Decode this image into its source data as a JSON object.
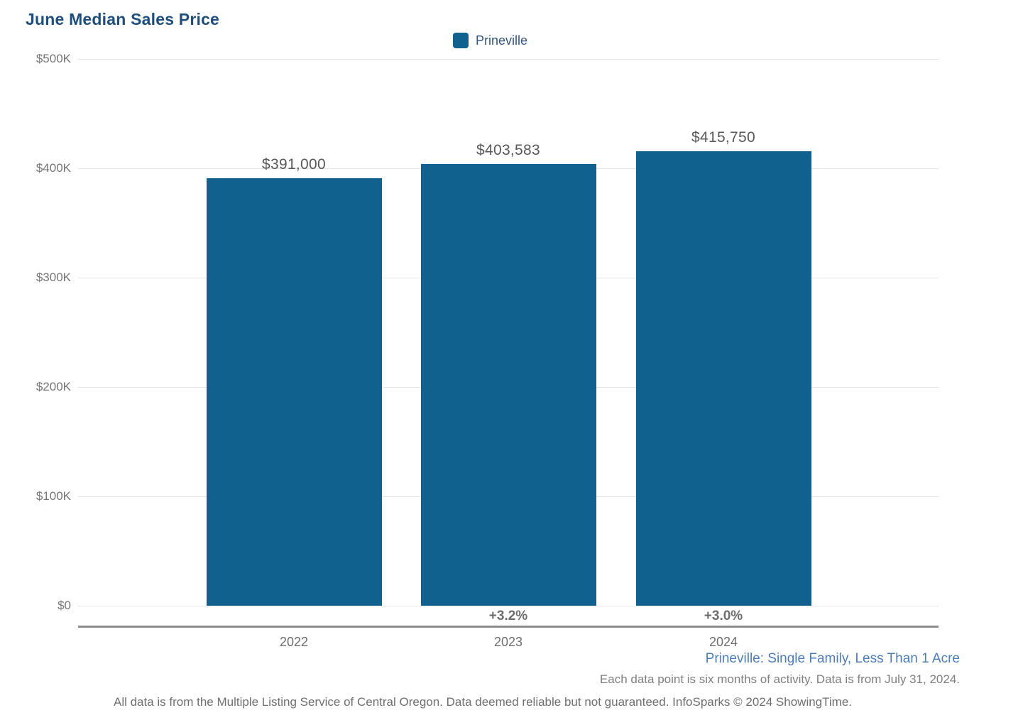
{
  "chart_data": {
    "type": "bar",
    "title": "June Median Sales Price",
    "legend_position": "top-center",
    "legend": [
      {
        "label": "Prineville",
        "color": "#11618f"
      }
    ],
    "categories": [
      "2022",
      "2023",
      "2024"
    ],
    "series": [
      {
        "name": "Prineville",
        "values": [
          391000,
          403583,
          415750
        ]
      }
    ],
    "value_labels": [
      "$391,000",
      "$403,583",
      "$415,750"
    ],
    "pct_change_labels": [
      "",
      "+3.2%",
      "+3.0%"
    ],
    "y_ticks": [
      {
        "label": "$500K",
        "value": 500000
      },
      {
        "label": "$400K",
        "value": 400000
      },
      {
        "label": "$300K",
        "value": 300000
      },
      {
        "label": "$200K",
        "value": 200000
      },
      {
        "label": "$100K",
        "value": 100000
      },
      {
        "label": "$0",
        "value": 0
      }
    ],
    "ylim": [
      0,
      500000
    ],
    "xlabel": "",
    "ylabel": "",
    "grid": true
  },
  "colors": {
    "bar": "#11618f",
    "title": "#1d4e7c",
    "legend_text": "#33567c",
    "gridline": "#e4e4e4",
    "axis_line": "#8c8c8c",
    "value_label": "#57585a",
    "pct_label": "#6e6e6e",
    "tick_label": "#767676",
    "footer_link": "#4d7db6",
    "footer_text": "#7f7f7f"
  },
  "footer": {
    "series_description": "Prineville: Single Family, Less Than 1 Acre",
    "data_note": "Each data point is six months of activity. Data is from July 31, 2024.",
    "attribution": "All data is from the Multiple Listing Service of Central Oregon. Data deemed reliable but not guaranteed. InfoSparks © 2024 ShowingTime."
  }
}
